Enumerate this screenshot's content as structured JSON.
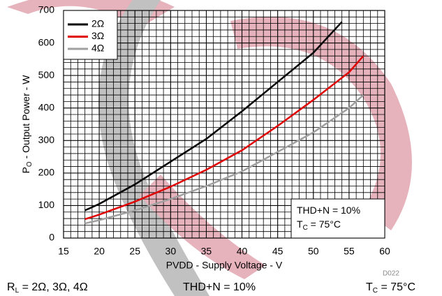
{
  "chart_data": {
    "type": "line",
    "y_label": [
      "P",
      "O",
      " - Output Power - W"
    ],
    "x_label": "PVDD - Supply Voltage - V",
    "figure_id": "D022",
    "annotation": [
      [
        "THD+N = 10%"
      ],
      [
        "T",
        "C",
        " = 75°C"
      ]
    ],
    "footer": [
      [
        "R",
        "L",
        " = 2Ω, 3Ω, 4Ω"
      ],
      [
        "THD+N = 10%"
      ],
      [
        "T",
        "C",
        " = 75°C"
      ]
    ],
    "xlim": [
      15,
      60
    ],
    "xticks": [
      15,
      20,
      25,
      30,
      35,
      40,
      45,
      50,
      55,
      60
    ],
    "ylim": [
      0,
      700
    ],
    "yticks": [
      0,
      100,
      200,
      300,
      400,
      500,
      600,
      700
    ],
    "grid": true,
    "minor_grid": [
      1,
      20
    ],
    "legend": "upper-left",
    "series": [
      {
        "name": "2Ω",
        "color": "#000000",
        "x": [
          18,
          20,
          25,
          30,
          35,
          40,
          45,
          50,
          54
        ],
        "values": [
          85,
          105,
          165,
          235,
          305,
          390,
          480,
          570,
          665
        ]
      },
      {
        "name": "3Ω",
        "color": "#e00000",
        "x": [
          18,
          20,
          25,
          30,
          35,
          40,
          45,
          50,
          55,
          57
        ],
        "values": [
          58,
          72,
          112,
          158,
          210,
          270,
          345,
          425,
          510,
          560
        ]
      },
      {
        "name": "4Ω",
        "color": "#a0a0a0",
        "x": [
          18,
          20,
          25,
          30,
          35,
          40,
          45,
          50,
          55,
          57
        ],
        "values": [
          45,
          55,
          85,
          120,
          160,
          205,
          265,
          325,
          400,
          440
        ]
      }
    ]
  }
}
